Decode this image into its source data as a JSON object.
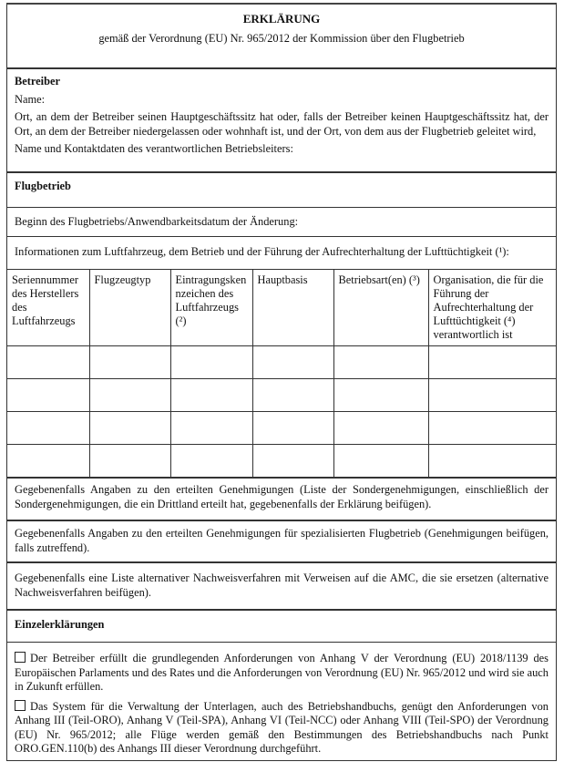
{
  "header": {
    "title": "ERKLÄRUNG",
    "subtitle": "gemäß der Verordnung (EU) Nr. 965/2012 der Kommission über den Flugbetrieb"
  },
  "betreiber": {
    "heading": "Betreiber",
    "name": "Name:",
    "ort": "Ort, an dem der Betreiber seinen Hauptgeschäftssitz hat oder, falls der Betreiber keinen Hauptgeschäftssitz hat, der Ort, an dem der Betreiber niedergelassen oder wohnhaft ist, und der Ort, von dem aus der Flugbetrieb geleitet wird,",
    "leiter": "Name und Kontaktdaten des verantwortlichen Betriebsleiters:"
  },
  "flugbetrieb": {
    "heading": "Flugbetrieb",
    "beginn": "Beginn des Flugbetriebs/Anwendbarkeitsdatum der Änderung:",
    "informationen": "Informationen zum Luftfahrzeug, dem Betrieb und der Führung der Aufrechterhaltung der Lufttüchtigkeit (¹):"
  },
  "table": {
    "columns": [
      "Seriennummer des Herstellers des Luftfahrzeugs",
      "Flugzeugtyp",
      "Eintragungskennzeichen des Luftfahrzeugs (²)",
      "Hauptbasis",
      "Betriebsart(en) (³)",
      "Organisation, die für die Führung der Aufrechterhaltung der Lufttüchtigkeit (⁴) verantwortlich ist"
    ],
    "rows": [
      [
        "",
        "",
        "",
        "",
        "",
        ""
      ],
      [
        "",
        "",
        "",
        "",
        "",
        ""
      ],
      [
        "",
        "",
        "",
        "",
        "",
        ""
      ],
      [
        "",
        "",
        "",
        "",
        "",
        ""
      ]
    ]
  },
  "genehmigungen": [
    "Gegebenenfalls Angaben zu den erteilten Genehmigungen (Liste der Sondergenehmigungen, einschließlich der Sondergenehmigungen, die ein Drittland erteilt hat, gegebenenfalls der Erklärung beifügen).",
    "Gegebenenfalls Angaben zu den erteilten Genehmigungen für spezialisierten Flugbetrieb (Genehmigungen beifügen, falls zutreffend).",
    "Gegebenenfalls eine Liste alternativer Nachweisverfahren mit Verweisen auf die AMC, die sie ersetzen (alternative Nachweisverfahren beifügen)."
  ],
  "einzelerklaerungen": {
    "heading": "Einzelerklärungen",
    "items": [
      {
        "checked": false,
        "text": "Der Betreiber erfüllt die grundlegenden Anforderungen von Anhang V der Verordnung (EU) 2018/1139 des Europäischen Parlaments und des Rates und die Anforderungen von Verordnung (EU) Nr. 965/2012 und wird sie auch in Zukunft erfüllen."
      },
      {
        "checked": false,
        "text": "Das System für die Verwaltung der Unterlagen, auch des Betriebshandbuchs, genügt den Anforderungen von Anhang III (Teil-ORO), Anhang V (Teil-SPA), Anhang VI (Teil-NCC) oder Anhang VIII (Teil-SPO) der Verordnung (EU) Nr. 965/2012; alle Flüge werden gemäß den Bestimmungen des Betriebshandbuchs nach Punkt ORO.GEN.110(b) des Anhangs III dieser Verordnung durchgeführt."
      }
    ]
  }
}
